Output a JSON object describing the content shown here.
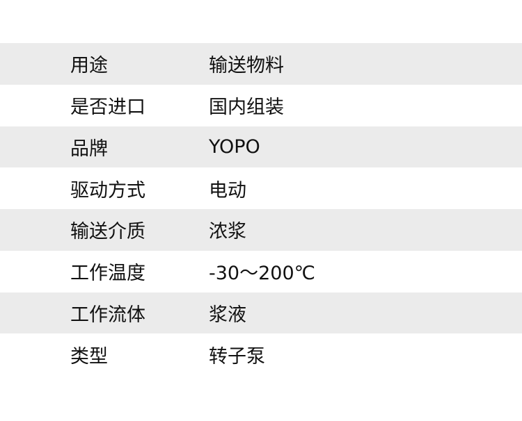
{
  "specs": [
    {
      "label": "用途",
      "value": "输送物料"
    },
    {
      "label": "是否进口",
      "value": "国内组装"
    },
    {
      "label": "品牌",
      "value": "YOPO"
    },
    {
      "label": "驱动方式",
      "value": "电动"
    },
    {
      "label": "输送介质",
      "value": "浓浆"
    },
    {
      "label": "工作温度",
      "value": "-30～200℃"
    },
    {
      "label": "工作流体",
      "value": "浆液"
    },
    {
      "label": "类型",
      "value": "转子泵"
    }
  ],
  "colors": {
    "stripe": "#ebebeb",
    "background": "#ffffff",
    "text": "#111111"
  }
}
